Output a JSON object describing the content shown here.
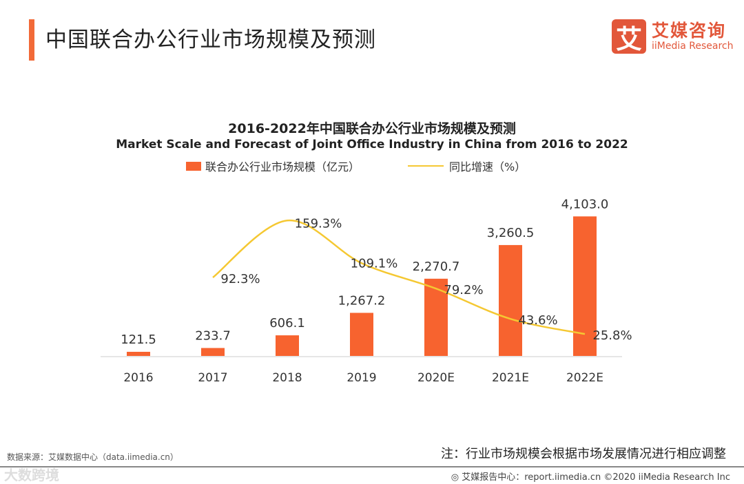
{
  "header": {
    "title": "中国联合办公行业市场规模及预测",
    "logo_mark": "艾",
    "logo_cn": "艾媒咨询",
    "logo_en": "iiMedia Research"
  },
  "chart_data": {
    "type": "bar",
    "title": "2016-2022年中国联合办公行业市场规模及预测",
    "subtitle": "Market Scale and Forecast of Joint Office Industry in China from 2016 to 2022",
    "categories": [
      "2016",
      "2017",
      "2018",
      "2019",
      "2020E",
      "2021E",
      "2022E"
    ],
    "series": [
      {
        "name": "联合办公行业市场规模（亿元）",
        "type": "bar",
        "color": "#f7632f",
        "values": [
          121.5,
          233.7,
          606.1,
          1267.2,
          2270.7,
          3260.5,
          4103.0
        ],
        "labels": [
          "121.5",
          "233.7",
          "606.1",
          "1,267.2",
          "2,270.7",
          "3,260.5",
          "4,103.0"
        ],
        "ylim": [
          0,
          5000
        ]
      },
      {
        "name": "同比增速（%）",
        "type": "line",
        "color": "#f5c832",
        "values": [
          null,
          92.3,
          159.3,
          109.1,
          79.2,
          43.6,
          25.8
        ],
        "labels": [
          "",
          "92.3%",
          "159.3%",
          "109.1%",
          "79.2%",
          "43.6%",
          "25.8%"
        ],
        "ylim": [
          0,
          200
        ]
      }
    ],
    "legend": "top-center",
    "grid": false
  },
  "footer": {
    "source": "数据来源：艾媒数据中心（data.iimedia.cn）",
    "note": "注：行业市场规模会根据市场发展情况进行相应调整",
    "watermark": "大数跨境",
    "credit": "艾媒报告中心：report.iimedia.cn ©2020  iiMedia Research  Inc"
  }
}
